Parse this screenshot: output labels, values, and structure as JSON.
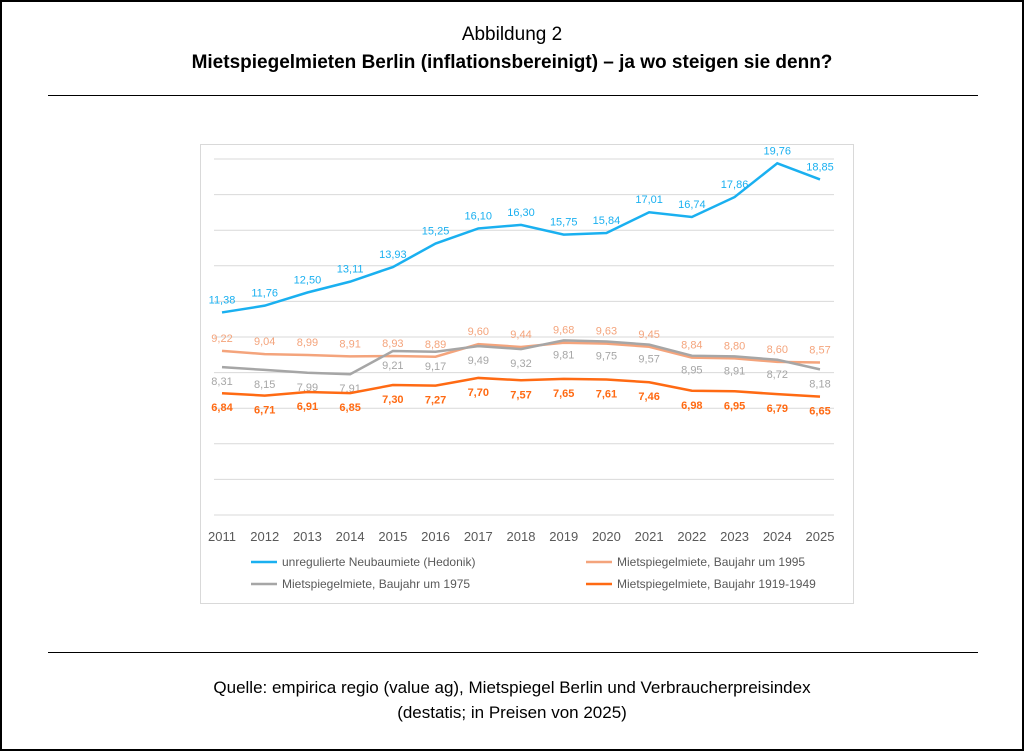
{
  "header": {
    "figure_label": "Abbildung 2",
    "title": "Mietspiegelmieten Berlin (inflationsbereinigt) – ja wo steigen sie denn?"
  },
  "footer": {
    "line1": "Quelle: empirica regio (value ag), Mietspiegel Berlin und Verbraucherpreisindex",
    "line2": "(destatis; in Preisen von 2025)"
  },
  "chart_data": {
    "type": "line",
    "x": [
      "2011",
      "2012",
      "2013",
      "2014",
      "2015",
      "2016",
      "2017",
      "2018",
      "2019",
      "2020",
      "2021",
      "2022",
      "2023",
      "2024",
      "2025"
    ],
    "ylim": [
      0,
      20
    ],
    "yticks": [
      "0,00",
      "2,00",
      "4,00",
      "6,00",
      "8,00",
      "10,00",
      "12,00",
      "14,00",
      "16,00",
      "18,00",
      "20,00"
    ],
    "grid": true,
    "legend_position": "bottom",
    "series": [
      {
        "name": "unregulierte Neubaumiete (Hedonik)",
        "color": "#1ab0f0",
        "label_pos": "above",
        "values": [
          11.38,
          11.76,
          12.5,
          13.11,
          13.93,
          15.25,
          16.1,
          16.3,
          15.75,
          15.84,
          17.01,
          16.74,
          17.86,
          19.76,
          18.85
        ],
        "labels": [
          "11,38",
          "11,76",
          "12,50",
          "13,11",
          "13,93",
          "15,25",
          "16,10",
          "16,30",
          "15,75",
          "15,84",
          "17,01",
          "16,74",
          "17,86",
          "19,76",
          "18,85"
        ]
      },
      {
        "name": "Mietspiegelmiete, Baujahr um 1995",
        "color": "#f4a47c",
        "label_pos": "above",
        "values": [
          9.22,
          9.04,
          8.99,
          8.91,
          8.93,
          8.89,
          9.6,
          9.44,
          9.68,
          9.63,
          9.45,
          8.84,
          8.8,
          8.6,
          8.57
        ],
        "labels": [
          "9,22",
          "9,04",
          "8,99",
          "8,91",
          "8,93",
          "8,89",
          "9,60",
          "9,44",
          "9,68",
          "9,63",
          "9,45",
          "8,84",
          "8,80",
          "8,60",
          "8,57"
        ]
      },
      {
        "name": "Mietspiegelmiete, Baujahr um 1975",
        "color": "#a6a6a6",
        "label_pos": "below",
        "values": [
          8.31,
          8.15,
          7.99,
          7.91,
          9.21,
          9.17,
          9.49,
          9.32,
          9.81,
          9.75,
          9.57,
          8.95,
          8.91,
          8.72,
          8.18
        ],
        "labels": [
          "8,31",
          "8,15",
          "7,99",
          "7,91",
          "9,21",
          "9,17",
          "9,49",
          "9,32",
          "9,81",
          "9,75",
          "9,57",
          "8,95",
          "8,91",
          "8,72",
          "8,18"
        ]
      },
      {
        "name": "Mietspiegelmiete, Baujahr 1919-1949",
        "color": "#ff6a13",
        "label_pos": "below",
        "values": [
          6.84,
          6.71,
          6.91,
          6.85,
          7.3,
          7.27,
          7.7,
          7.57,
          7.65,
          7.61,
          7.46,
          6.98,
          6.95,
          6.79,
          6.65
        ],
        "labels": [
          "6,84",
          "6,71",
          "6,91",
          "6,85",
          "7,30",
          "7,27",
          "7,70",
          "7,57",
          "7,65",
          "7,61",
          "7,46",
          "6,98",
          "6,95",
          "6,79",
          "6,65"
        ]
      }
    ]
  }
}
